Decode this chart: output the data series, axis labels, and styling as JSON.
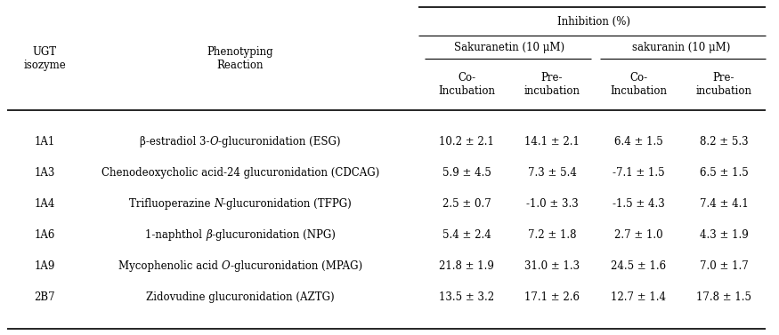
{
  "ugt_isozymes": [
    "1A1",
    "1A3",
    "1A4",
    "1A6",
    "1A9",
    "2B7"
  ],
  "phenotyping_reactions": [
    "β-estradiol 3-O-glucuronidation (ESG)",
    "Chenodeoxycholic acid-24 glucuronidation (CDCAG)",
    "Trifluoperazine N-glucuronidation (TFPG)",
    "1-naphthol β-glucuronidation (NPG)",
    "Mycophenolic acid O-glucuronidation (MPAG)",
    "Zidovudine glucuronidation (AZTG)"
  ],
  "italic_segments": [
    [
      [
        "β-estradiol 3-",
        false
      ],
      [
        "O",
        true
      ],
      [
        "-glucuronidation (ESG)",
        false
      ]
    ],
    [
      [
        "Chenodeoxycholic acid-24 glucuronidation (CDCAG)",
        false
      ]
    ],
    [
      [
        "Trifluoperazine ",
        false
      ],
      [
        "N",
        true
      ],
      [
        "-glucuronidation (TFPG)",
        false
      ]
    ],
    [
      [
        "1-naphthol ",
        false
      ],
      [
        "β",
        true
      ],
      [
        "-glucuronidation (NPG)",
        false
      ]
    ],
    [
      [
        "Mycophenolic acid ",
        false
      ],
      [
        "O",
        true
      ],
      [
        "-glucuronidation (MPAG)",
        false
      ]
    ],
    [
      [
        "Zidovudine glucuronidation (AZTG)",
        false
      ]
    ]
  ],
  "sakuranetin_co": [
    "10.2 ± 2.1",
    "5.9 ± 4.5",
    "2.5 ± 0.7",
    "5.4 ± 2.4",
    "21.8 ± 1.9",
    "13.5 ± 3.2"
  ],
  "sakuranetin_pre": [
    "14.1 ± 2.1",
    "7.3 ± 5.4",
    "-1.0 ± 3.3",
    "7.2 ± 1.8",
    "31.0 ± 1.3",
    "17.1 ± 2.6"
  ],
  "sakuranin_co": [
    "6.4 ± 1.5",
    "-7.1 ± 1.5",
    "-1.5 ± 4.3",
    "2.7 ± 1.0",
    "24.5 ± 1.6",
    "12.7 ± 1.4"
  ],
  "sakuranin_pre": [
    "8.2 ± 5.3",
    "6.5 ± 1.5",
    "7.4 ± 4.1",
    "4.3 ± 1.9",
    "7.0 ± 1.7",
    "17.8 ± 1.5"
  ],
  "bg_color": "#ffffff",
  "text_color": "#000000",
  "line_color": "#000000",
  "font_size": 8.5,
  "font_family": "DejaVu Serif"
}
